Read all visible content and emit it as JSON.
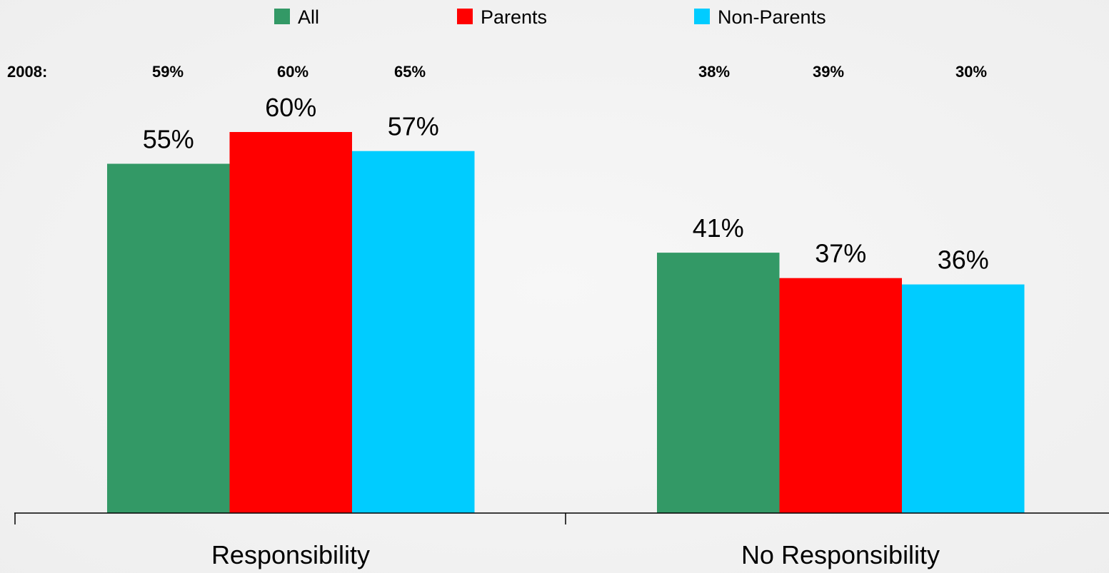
{
  "chart_data": {
    "type": "bar",
    "title": "",
    "xlabel": "",
    "ylabel": "",
    "categories": [
      "Responsibility",
      "No Responsibility"
    ],
    "series": [
      {
        "name": "All",
        "values": [
          55,
          41
        ],
        "color": "#339966",
        "labels": [
          "55%",
          "41%"
        ]
      },
      {
        "name": "Parents",
        "values": [
          60,
          37
        ],
        "color": "#ff0000",
        "labels": [
          "60%",
          "37%"
        ]
      },
      {
        "name": "Non-Parents",
        "values": [
          57,
          36
        ],
        "color": "#00ccff",
        "labels": [
          "57%",
          "36%"
        ]
      }
    ],
    "ylim": [
      0,
      60
    ],
    "grid": false,
    "legend": "top-center",
    "comparison_row": {
      "label": "2008:",
      "values": [
        [
          "59%",
          "60%",
          "65%"
        ],
        [
          "38%",
          "39%",
          "30%"
        ]
      ]
    }
  }
}
